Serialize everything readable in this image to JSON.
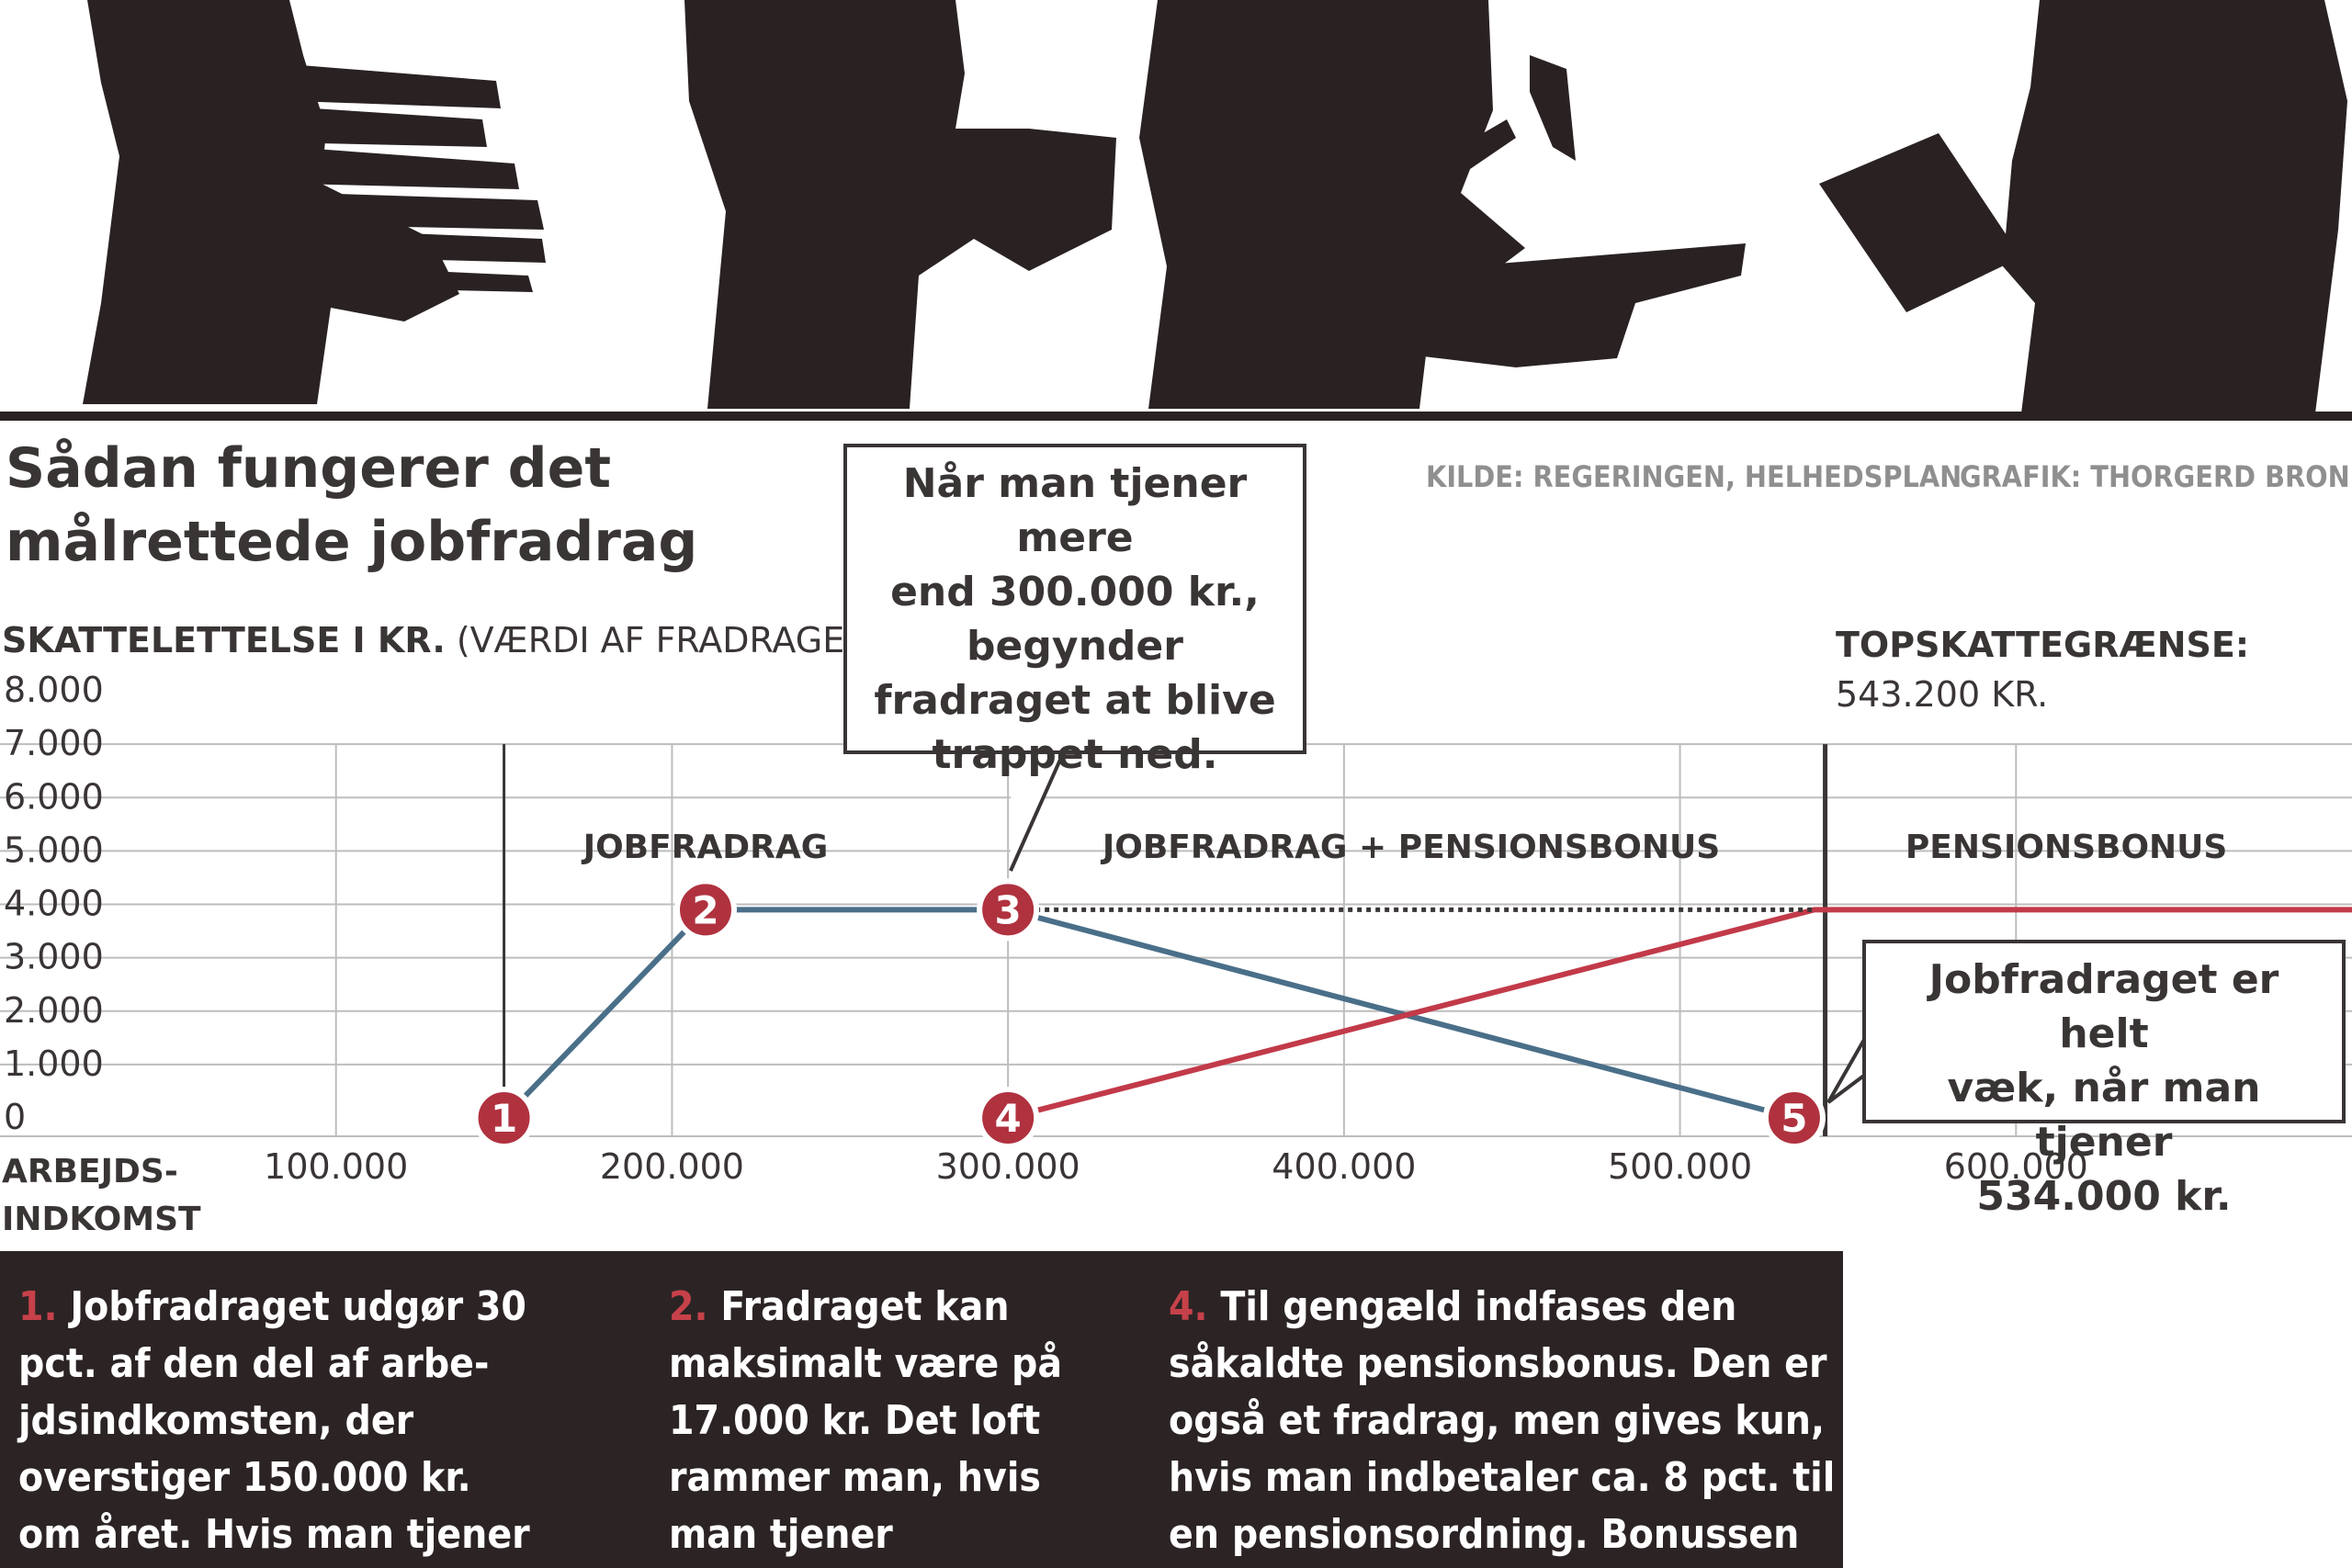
{
  "headline": {
    "title": "Sådan fungerer det\nmålrettede jobfradrag",
    "source": "KILDE: REGERINGEN, HELHEDSPLAN",
    "graphic_credit": "GRAFIK: THORGERD BRONI"
  },
  "colors": {
    "ink": "#3a3535",
    "blue_line": "#4a6f89",
    "red_line": "#c23a49",
    "marker": "#b0323f",
    "footer_bg": "#2c2424",
    "grid": "#bdbdbd"
  },
  "icons": [
    "person-carrying-books-icon",
    "person-carrying-box-icon",
    "blacksmith-with-hammer-icon",
    "person-with-tablet-icon"
  ],
  "chart_data": {
    "type": "line",
    "y_title_bold": "SKATTELETTELSE I KR.",
    "y_title_rest": " (VÆRDI AF FRADRAGET)",
    "x_title": "ARBEJDS-\nINDKOMST",
    "x_ticks": [
      100000,
      200000,
      300000,
      400000,
      500000,
      600000
    ],
    "x_tick_labels": [
      "100.000",
      "200.000",
      "300.000",
      "400.000",
      "500.000",
      "600.000"
    ],
    "y_ticks": [
      0,
      1000,
      2000,
      3000,
      4000,
      5000,
      6000,
      7000,
      8000
    ],
    "y_tick_labels": [
      "0",
      "1.000",
      "2.000",
      "3.000",
      "4.000",
      "5.000",
      "6.000",
      "7.000",
      "8.000"
    ],
    "xlim": [
      0,
      700000
    ],
    "ylim": [
      0,
      8000
    ],
    "grid": true,
    "series": [
      {
        "key": "jobfradrag",
        "color": "#4a6f89",
        "style": "solid",
        "points": [
          [
            150000,
            0
          ],
          [
            210000,
            3900
          ],
          [
            300000,
            3900
          ],
          [
            534000,
            0
          ]
        ]
      },
      {
        "key": "pensionsbonus",
        "color": "#c23a49",
        "style": "solid",
        "points": [
          [
            300000,
            0
          ],
          [
            540000,
            3900
          ],
          [
            700000,
            3900
          ]
        ]
      },
      {
        "key": "combined-level",
        "color": "#3a3535",
        "style": "dotted",
        "points": [
          [
            300000,
            3900
          ],
          [
            540000,
            3900
          ]
        ]
      }
    ],
    "markers": [
      {
        "label": "1",
        "x": 150000,
        "y": 0
      },
      {
        "label": "2",
        "x": 210000,
        "y": 3900
      },
      {
        "label": "3",
        "x": 300000,
        "y": 3900
      },
      {
        "label": "4",
        "x": 300000,
        "y": 0
      },
      {
        "label": "5",
        "x": 534000,
        "y": 0
      }
    ],
    "thresholds": [
      {
        "x": 150000,
        "weight": "thin"
      },
      {
        "x": 543200,
        "weight": "thick"
      }
    ],
    "regions": [
      {
        "label": "JOBFRADRAG",
        "x": 210000
      },
      {
        "label": "JOBFRADRAG + PENSIONSBONUS",
        "x": 420000
      },
      {
        "label": "PENSIONSBONUS",
        "x": 615000
      }
    ],
    "topskat": {
      "label": "TOPSKATTEGRÆNSE:",
      "value_text": "543.200 KR."
    },
    "callouts": {
      "c3": "Når man tjener mere\nend 300.000 kr.,\nbegynder\nfradraget at blive\ntrappet ned.",
      "c5": "Jobfradraget er helt\nvæk, når man tjener\n534.000 kr."
    }
  },
  "footer": {
    "notes": [
      {
        "num": "1.",
        "text": " Jobfradraget udgør 30\npct. af den del af arbe-\njdsindkomsten, der\noverstiger 150.000 kr.\nom året. Hvis man tjener"
      },
      {
        "num": "2.",
        "text": " Fradraget kan\nmaksimalt være på\n17.000 kr. Det loft\nrammer man, hvis\nman tjener"
      },
      {
        "num": "4.",
        "text": " Til gengæld indfases den\nsåkaldte pensionsbonus. Den er\nogså et fradrag, men gives kun,\nhvis man indbetaler ca. 8 pct. til\nen pensionsordning. Bonussen"
      }
    ]
  }
}
